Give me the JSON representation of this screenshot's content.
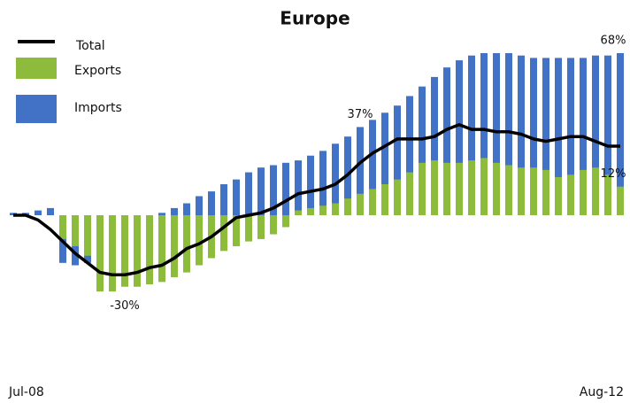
{
  "chart_data": {
    "type": "bar-line",
    "title": "Europe",
    "categories": [
      "Jul-08",
      null,
      null,
      null,
      null,
      null,
      null,
      null,
      null,
      null,
      null,
      null,
      null,
      null,
      null,
      null,
      null,
      null,
      null,
      null,
      null,
      null,
      null,
      null,
      null,
      null,
      null,
      null,
      null,
      null,
      null,
      null,
      null,
      null,
      null,
      null,
      null,
      null,
      null,
      null,
      null,
      null,
      null,
      null,
      null,
      null,
      null,
      null,
      null,
      "Aug-12"
    ],
    "legend": "top-left",
    "series": [
      {
        "name": "Imports",
        "kind": "bar",
        "color": "#4272c6",
        "values": [
          1,
          1,
          2,
          3,
          -20,
          -21,
          -20,
          -18,
          -15,
          -12,
          -9,
          -6,
          1,
          3,
          5,
          8,
          10,
          13,
          15,
          18,
          20,
          21,
          22,
          23,
          25,
          27,
          30,
          33,
          37,
          40,
          43,
          46,
          50,
          54,
          58,
          62,
          65,
          67,
          68,
          68,
          68,
          67,
          66,
          66,
          66,
          66,
          66,
          67,
          67,
          68
        ],
        "value_labels": [
          null,
          null,
          null,
          null,
          null,
          null,
          null,
          null,
          null,
          null,
          null,
          null,
          null,
          null,
          null,
          null,
          null,
          null,
          null,
          null,
          null,
          null,
          null,
          null,
          null,
          null,
          null,
          null,
          "37%",
          null,
          null,
          null,
          null,
          null,
          null,
          null,
          null,
          null,
          null,
          null,
          null,
          null,
          null,
          null,
          null,
          null,
          null,
          null,
          null,
          "68%"
        ]
      },
      {
        "name": "Exports",
        "kind": "bar",
        "color": "#8dbb3c",
        "values": [
          0,
          0,
          0,
          0,
          -10,
          -13,
          -17,
          -32,
          -32,
          -30,
          -30,
          -29,
          -28,
          -26,
          -24,
          -21,
          -18,
          -15,
          -13,
          -11,
          -10,
          -8,
          -5,
          2,
          3,
          4,
          5,
          7,
          9,
          11,
          13,
          15,
          18,
          22,
          23,
          22,
          22,
          23,
          24,
          22,
          21,
          20,
          20,
          19,
          16,
          17,
          19,
          20,
          17,
          12
        ],
        "value_labels": [
          null,
          null,
          null,
          null,
          null,
          null,
          null,
          null,
          null,
          "-30%",
          null,
          null,
          null,
          null,
          null,
          null,
          null,
          null,
          null,
          null,
          null,
          null,
          null,
          null,
          null,
          null,
          null,
          null,
          null,
          null,
          null,
          null,
          null,
          null,
          null,
          null,
          null,
          null,
          null,
          null,
          null,
          null,
          null,
          null,
          null,
          null,
          null,
          null,
          null,
          "12%"
        ]
      },
      {
        "name": "Total",
        "kind": "line",
        "color": "#000000",
        "values": [
          0,
          0,
          -2,
          -6,
          -11,
          -16,
          -20,
          -24,
          -25,
          -25,
          -24,
          -22,
          -21,
          -18,
          -14,
          -12,
          -9,
          -5,
          -1,
          0,
          1,
          3,
          6,
          9,
          10,
          11,
          13,
          17,
          22,
          26,
          29,
          32,
          32,
          32,
          33,
          36,
          38,
          36,
          36,
          35,
          35,
          34,
          32,
          31,
          32,
          33,
          33,
          31,
          29,
          29
        ]
      }
    ]
  }
}
